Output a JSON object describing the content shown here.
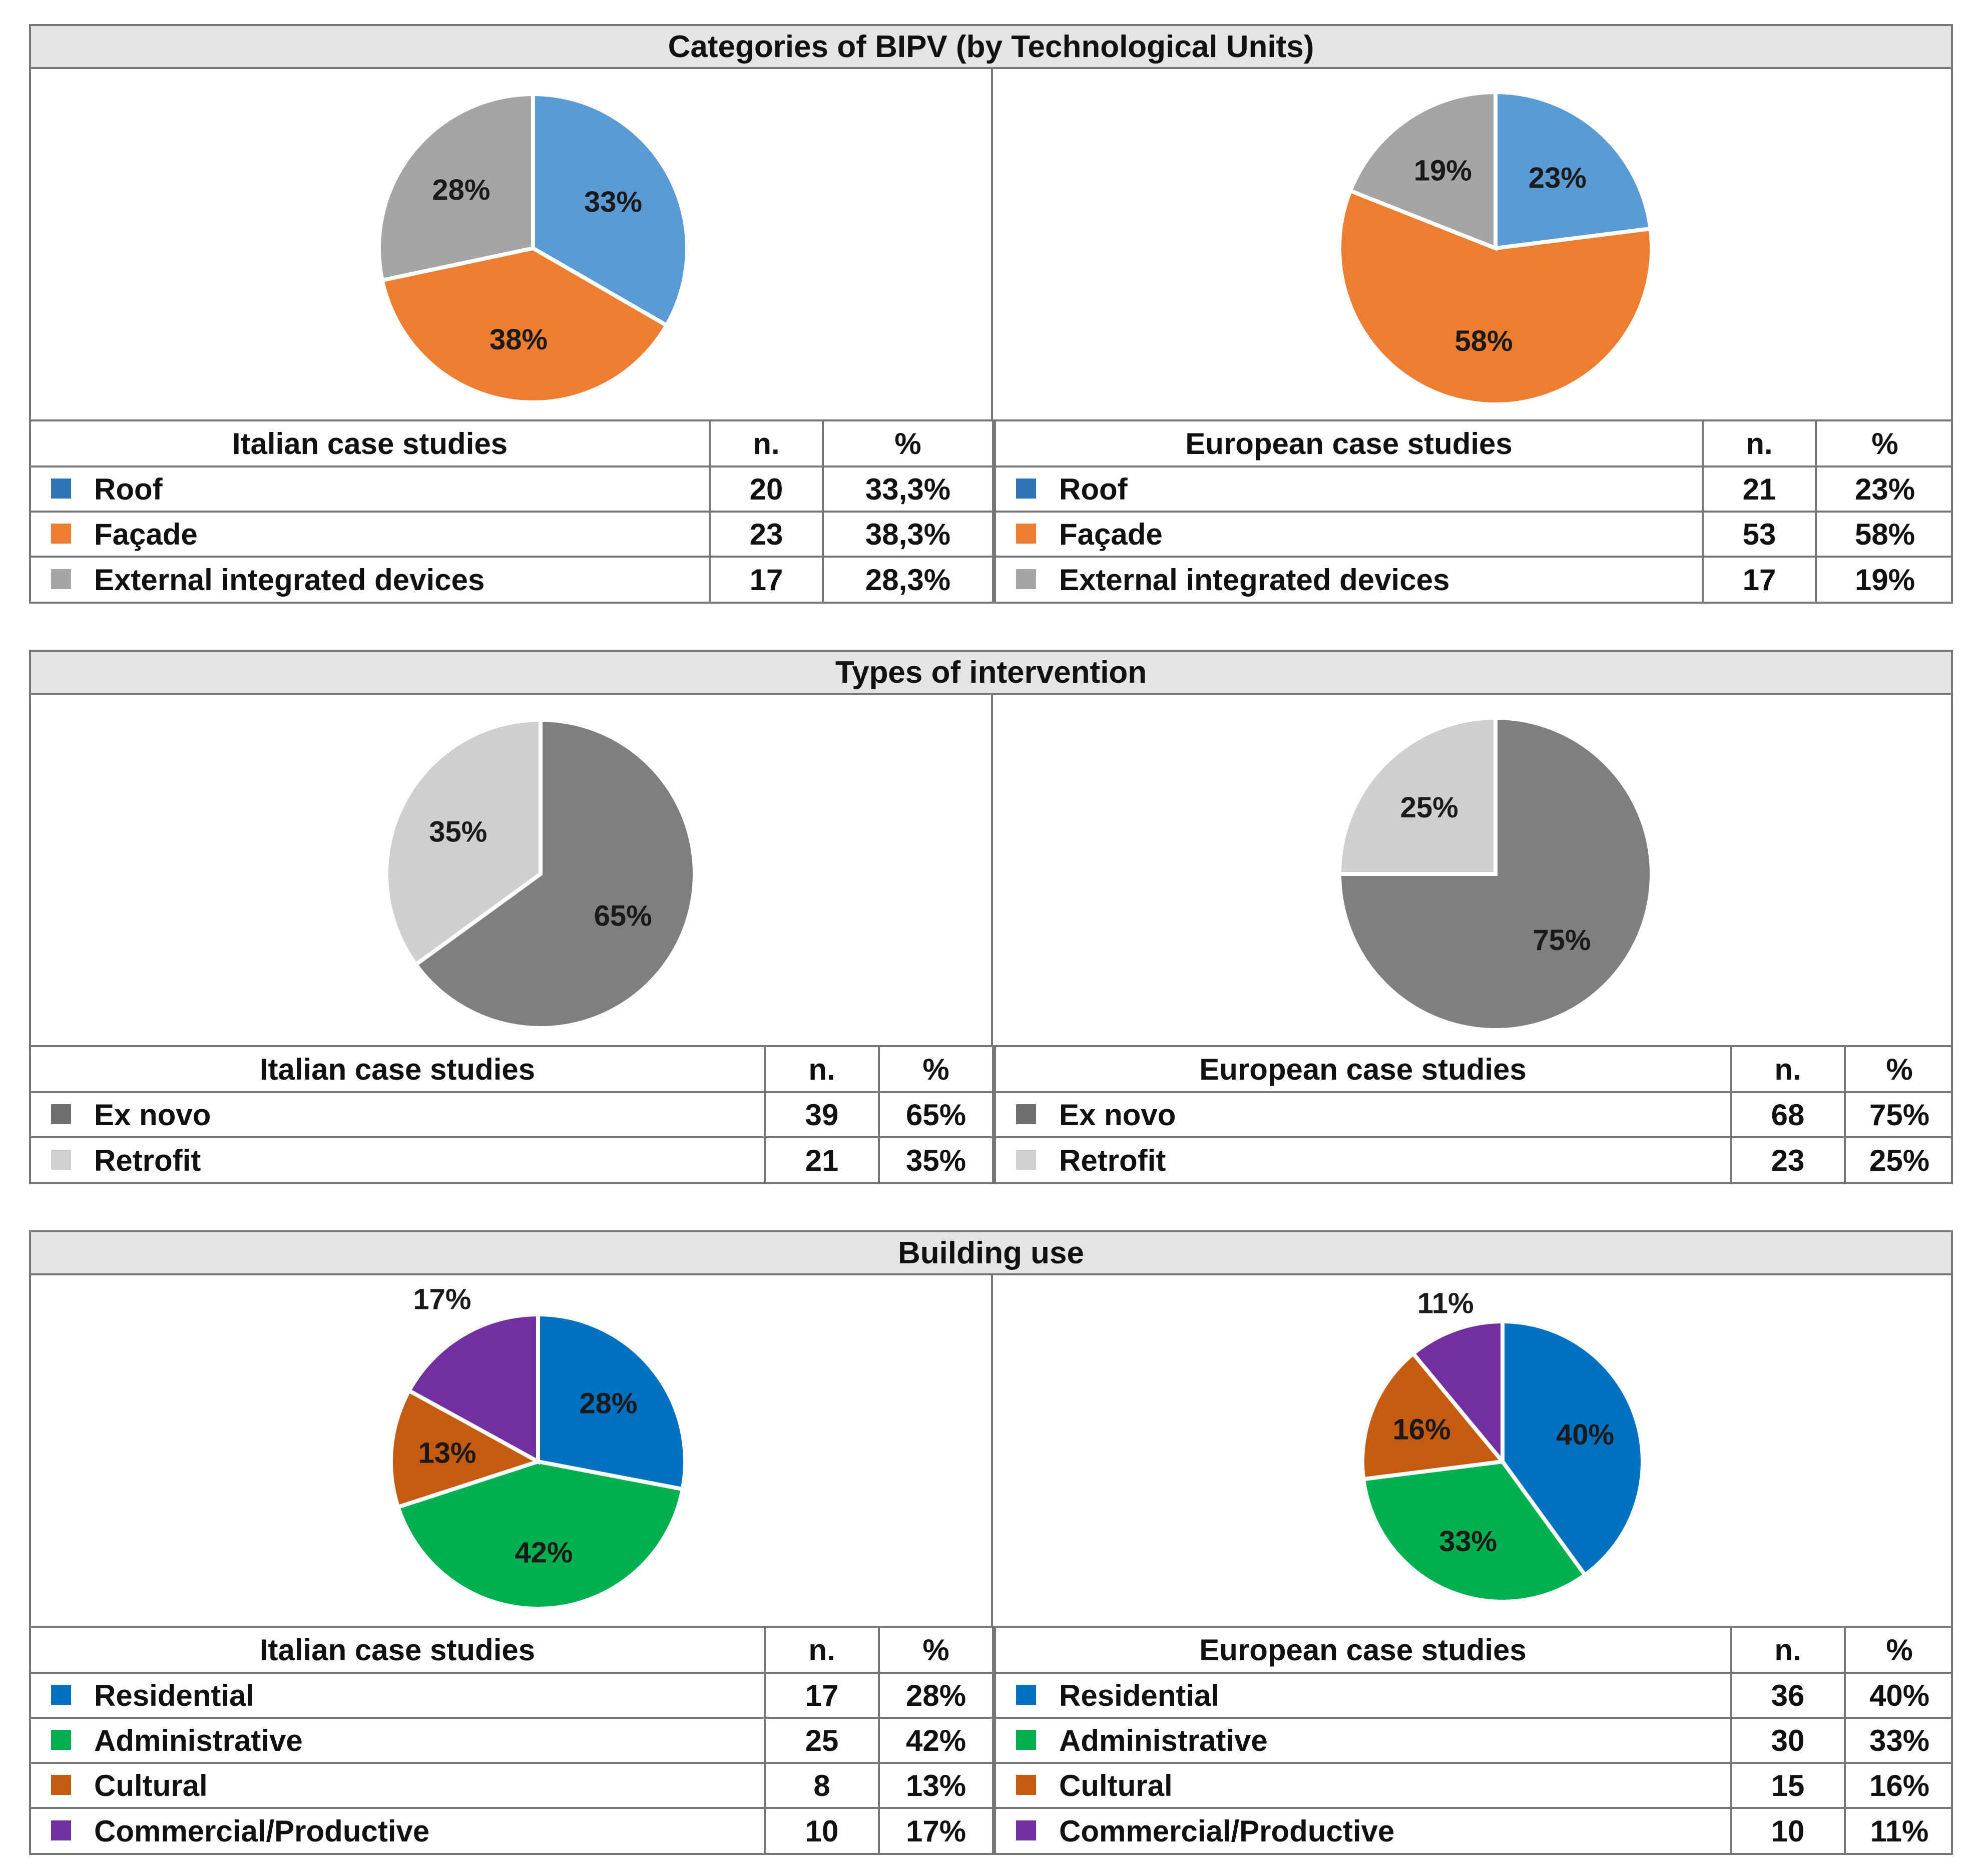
{
  "chart_data": [
    {
      "type": "pie",
      "title": "Categories of BIPV (by Technological Units)",
      "panels": [
        {
          "name": "italian",
          "header": "Italian case studies",
          "col_n": "n.",
          "col_pct": "%",
          "slices": [
            {
              "label": "Roof",
              "n": "20",
              "pct": "33,3%",
              "value": 33.3,
              "slice_label": "33%",
              "color": "#5b9bd5",
              "swatch": "#2e75b6"
            },
            {
              "label": "Façade",
              "n": "23",
              "pct": "38,3%",
              "value": 38.3,
              "slice_label": "38%",
              "color": "#ed7d31",
              "swatch": "#ed7d31"
            },
            {
              "label": "External integrated devices",
              "n": "17",
              "pct": "28,3%",
              "value": 28.3,
              "slice_label": "28%",
              "color": "#a5a5a5",
              "swatch": "#a5a5a5"
            }
          ]
        },
        {
          "name": "european",
          "header": "European case studies",
          "col_n": "n.",
          "col_pct": "%",
          "slices": [
            {
              "label": "Roof",
              "n": "21",
              "pct": "23%",
              "value": 23,
              "slice_label": "23%",
              "color": "#5b9bd5",
              "swatch": "#2e75b6"
            },
            {
              "label": "Façade",
              "n": "53",
              "pct": "58%",
              "value": 58,
              "slice_label": "58%",
              "color": "#ed7d31",
              "swatch": "#ed7d31"
            },
            {
              "label": "External integrated devices",
              "n": "17",
              "pct": "19%",
              "value": 19,
              "slice_label": "19%",
              "color": "#a5a5a5",
              "swatch": "#a5a5a5"
            }
          ]
        }
      ]
    },
    {
      "type": "pie",
      "title": "Types of intervention",
      "panels": [
        {
          "name": "italian",
          "header": "Italian case studies",
          "col_n": "n.",
          "col_pct": "%",
          "slices": [
            {
              "label": "Ex novo",
              "n": "39",
              "pct": "65%",
              "value": 65,
              "slice_label": "65%",
              "color": "#7f7f7f",
              "swatch": "#6f6f6f"
            },
            {
              "label": "Retrofit",
              "n": "21",
              "pct": "35%",
              "value": 35,
              "slice_label": "35%",
              "color": "#cfcfcf",
              "swatch": "#d0d0d0"
            }
          ]
        },
        {
          "name": "european",
          "header": "European case studies",
          "col_n": "n.",
          "col_pct": "%",
          "slices": [
            {
              "label": "Ex novo",
              "n": "68",
              "pct": "75%",
              "value": 75,
              "slice_label": "75%",
              "color": "#7f7f7f",
              "swatch": "#6f6f6f"
            },
            {
              "label": "Retrofit",
              "n": "23",
              "pct": "25%",
              "value": 25,
              "slice_label": "25%",
              "color": "#cfcfcf",
              "swatch": "#d0d0d0"
            }
          ]
        }
      ]
    },
    {
      "type": "pie",
      "title": "Building use",
      "panels": [
        {
          "name": "italian",
          "header": "Italian case studies",
          "col_n": "n.",
          "col_pct": "%",
          "slices": [
            {
              "label": "Residential",
              "n": "17",
              "pct": "28%",
              "value": 28,
              "slice_label": "28%",
              "color": "#0070c0",
              "swatch": "#0070c0"
            },
            {
              "label": "Administrative",
              "n": "25",
              "pct": "42%",
              "value": 42,
              "slice_label": "42%",
              "color": "#00b050",
              "swatch": "#00b050"
            },
            {
              "label": "Cultural",
              "n": "8",
              "pct": "13%",
              "value": 13,
              "slice_label": "13%",
              "color": "#c55a11",
              "swatch": "#c55a11"
            },
            {
              "label": "Commercial/Productive",
              "n": "10",
              "pct": "17%",
              "value": 17,
              "slice_label": "17%",
              "color": "#7030a0",
              "swatch": "#7030a0"
            }
          ]
        },
        {
          "name": "european",
          "header": "European case studies",
          "col_n": "n.",
          "col_pct": "%",
          "slices": [
            {
              "label": "Residential",
              "n": "36",
              "pct": "40%",
              "value": 40,
              "slice_label": "40%",
              "color": "#0070c0",
              "swatch": "#0070c0"
            },
            {
              "label": "Administrative",
              "n": "30",
              "pct": "33%",
              "value": 33,
              "slice_label": "33%",
              "color": "#00b050",
              "swatch": "#00b050"
            },
            {
              "label": "Cultural",
              "n": "15",
              "pct": "16%",
              "value": 16,
              "slice_label": "16%",
              "color": "#c55a11",
              "swatch": "#c55a11"
            },
            {
              "label": "Commercial/Productive",
              "n": "10",
              "pct": "11%",
              "value": 11,
              "slice_label": "11%",
              "color": "#7030a0",
              "swatch": "#7030a0"
            }
          ]
        }
      ]
    }
  ]
}
